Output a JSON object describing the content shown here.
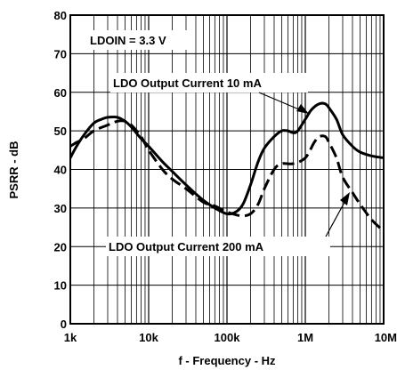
{
  "chart_data": {
    "type": "line",
    "title": "",
    "xlabel": "f - Frequency - Hz",
    "ylabel": "PSRR - dB",
    "xscale": "log",
    "xlim": [
      1000,
      10000000
    ],
    "ylim": [
      0,
      80
    ],
    "grid": true,
    "x_tick_labels": [
      "1k",
      "10k",
      "100k",
      "1M",
      "10M"
    ],
    "y_tick_labels": [
      "0",
      "10",
      "20",
      "30",
      "40",
      "50",
      "60",
      "70",
      "80"
    ],
    "annotations": {
      "condition": "LDOIN = 3.3 V",
      "series_10mA": "LDO Output Current 10 mA",
      "series_200mA": "LDO Output Current 200 mA"
    },
    "series": [
      {
        "name": "LDO Output Current 10 mA",
        "style": "solid",
        "x": [
          1000,
          1200,
          1500,
          2000,
          2500,
          3000,
          4000,
          5000,
          6000,
          8000,
          10000,
          15000,
          20000,
          30000,
          50000,
          70000,
          100000,
          130000,
          160000,
          200000,
          250000,
          300000,
          400000,
          500000,
          600000,
          700000,
          800000,
          1000000,
          1200000,
          1500000,
          1800000,
          2000000,
          2500000,
          3000000,
          4000000,
          5000000,
          7000000,
          10000000
        ],
        "y": [
          43,
          46,
          49,
          52,
          53,
          53.5,
          53.5,
          52.5,
          51,
          48,
          46,
          42,
          39.5,
          36,
          32,
          30,
          28.5,
          29,
          31,
          36,
          42,
          45.5,
          48.5,
          50,
          50,
          49.5,
          50,
          53,
          55.5,
          57,
          57,
          56,
          53,
          49,
          46,
          44.5,
          43.5,
          43
        ]
      },
      {
        "name": "LDO Output Current 200 mA",
        "style": "dashed",
        "x": [
          1000,
          1200,
          1500,
          2000,
          3000,
          4000,
          5000,
          6000,
          8000,
          10000,
          15000,
          20000,
          30000,
          50000,
          70000,
          100000,
          150000,
          200000,
          250000,
          300000,
          400000,
          500000,
          700000,
          1000000,
          1300000,
          1500000,
          1800000,
          2000000,
          2500000,
          3000000,
          4000000,
          5000000,
          7000000,
          10000000
        ],
        "y": [
          46,
          47,
          48,
          50,
          51.5,
          52.5,
          52.5,
          51.5,
          48.5,
          45,
          40,
          37.5,
          35,
          31.5,
          30.5,
          29,
          28,
          28.5,
          31,
          35,
          40,
          41.5,
          41.5,
          43,
          47,
          48.5,
          48.5,
          47,
          43,
          38,
          34,
          31,
          27,
          24
        ]
      }
    ]
  }
}
